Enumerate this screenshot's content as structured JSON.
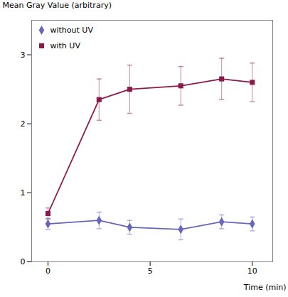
{
  "chart_data": {
    "type": "line",
    "xlabel": "Time (min)",
    "ylabel": "Mean Gray Value (arbitrary)",
    "x": [
      0,
      2.5,
      4,
      6.5,
      8.5,
      10
    ],
    "series": [
      {
        "name": "without UV",
        "color": "#6666bb",
        "marker": "diamond",
        "values": [
          0.55,
          0.6,
          0.5,
          0.47,
          0.58,
          0.55
        ],
        "errors": [
          0.08,
          0.12,
          0.1,
          0.15,
          0.1,
          0.1
        ]
      },
      {
        "name": "with UV",
        "color": "#8b1a4a",
        "marker": "square",
        "values": [
          0.7,
          2.35,
          2.5,
          2.55,
          2.65,
          2.6
        ],
        "errors": [
          0.08,
          0.3,
          0.35,
          0.28,
          0.3,
          0.28
        ]
      }
    ],
    "xlim": [
      -0.8,
      11
    ],
    "ylim": [
      0,
      3.5
    ],
    "xticks": [
      0,
      5,
      10
    ],
    "yticks": [
      0,
      1,
      2,
      3
    ],
    "grid": false,
    "legend": "upper left"
  }
}
